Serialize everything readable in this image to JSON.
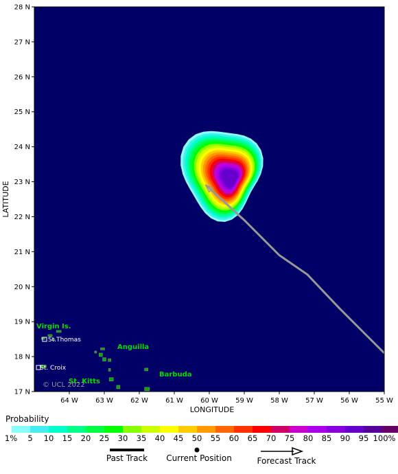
{
  "map": {
    "axes": {
      "x_label": "LONGITUDE",
      "y_label": "LATITUDE",
      "lon_ticks": [
        "64 W",
        "63 W",
        "62 W",
        "61 W",
        "60 W",
        "59 W",
        "58 W",
        "57 W",
        "56 W",
        "55 W"
      ],
      "lat_ticks": [
        "28 N",
        "27 N",
        "26 N",
        "25 N",
        "24 N",
        "23 N",
        "22 N",
        "21 N",
        "20 N",
        "19 N",
        "18 N",
        "17 N"
      ],
      "lon_range": [
        -65.0,
        -55.0
      ],
      "lat_range": [
        17.0,
        28.0
      ]
    },
    "forecast_track": [
      {
        "lon": -60.1,
        "lat": 22.9
      },
      {
        "lon": -59.0,
        "lat": 21.9
      },
      {
        "lon": -58.0,
        "lat": 20.9
      },
      {
        "lon": -57.2,
        "lat": 20.35
      },
      {
        "lon": -56.3,
        "lat": 19.4
      },
      {
        "lon": -55.6,
        "lat": 18.7
      },
      {
        "lon": -55.0,
        "lat": 18.1
      }
    ],
    "probability_center": {
      "lon": -59.4,
      "lat": 23.1
    },
    "places": {
      "virgin_islands": "Virgin Is.",
      "st_thomas": "St.Thomas",
      "st_croix": "St. Croix",
      "anguilla": "Anguilla",
      "barbuda": "Barbuda",
      "st_kitts": "St. Kitts"
    },
    "credit": "© UCL 2022",
    "colors": {
      "ocean": "#000066",
      "land": "#00aa00",
      "track": "#999999",
      "place_label": "#00dd00"
    }
  },
  "legend": {
    "title": "Probability",
    "labels": [
      "1%",
      "5",
      "10",
      "15",
      "20",
      "25",
      "30",
      "35",
      "40",
      "45",
      "50",
      "55",
      "60",
      "65",
      "70",
      "75",
      "80",
      "85",
      "90",
      "95",
      "100%"
    ],
    "colors": [
      "#88ffff",
      "#44eeee",
      "#00ffcc",
      "#00ff88",
      "#00ff44",
      "#00ff00",
      "#88ff00",
      "#ccff00",
      "#ffff00",
      "#ffcc00",
      "#ff9900",
      "#ff6600",
      "#ff3300",
      "#ff0000",
      "#cc0066",
      "#cc00cc",
      "#aa00ee",
      "#8800dd",
      "#6600cc",
      "#55009a",
      "#660066"
    ],
    "past_track": "Past Track",
    "current_position": "Current Position",
    "forecast_track": "Forecast Track"
  }
}
